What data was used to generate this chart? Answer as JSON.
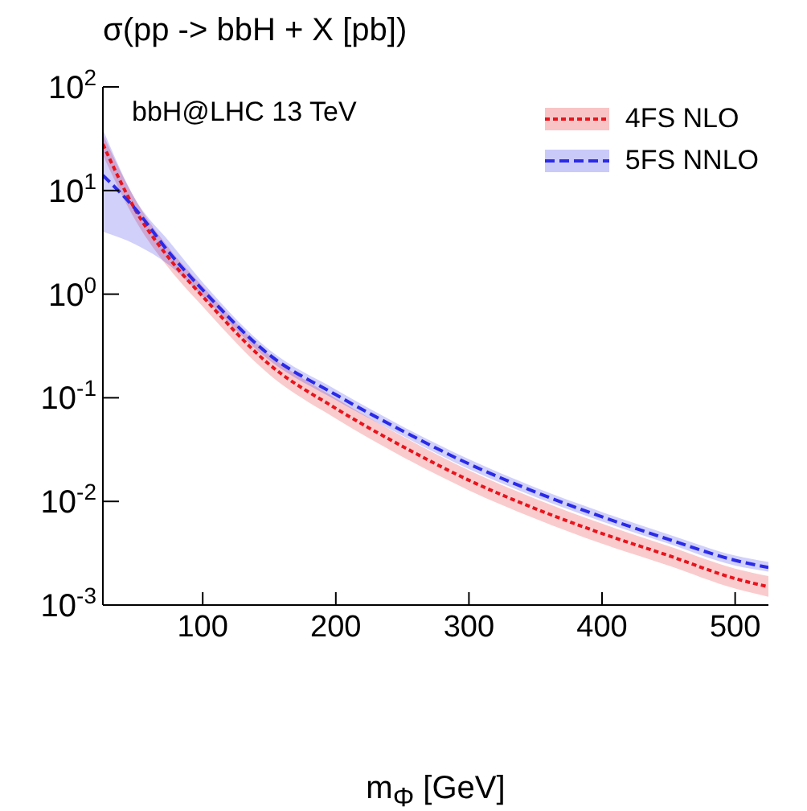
{
  "chart_data": {
    "type": "line",
    "title": "σ(pp -> bbH + X [pb])",
    "xlabel": "m$_{Φ}$ [GeV]",
    "annotations": [
      "bbH@LHC 13 TeV"
    ],
    "x": [
      25,
      50,
      75,
      100,
      150,
      200,
      250,
      300,
      350,
      400,
      450,
      500,
      525
    ],
    "series": [
      {
        "name": "4FS NLO",
        "color": "#e8141c",
        "line_style": "dotted",
        "values": [
          28,
          6.3,
          2.2,
          0.95,
          0.21,
          0.079,
          0.034,
          0.016,
          0.0085,
          0.0049,
          0.003,
          0.0018,
          0.0015
        ],
        "lower": [
          22,
          5.0,
          1.75,
          0.76,
          0.168,
          0.063,
          0.027,
          0.0128,
          0.0068,
          0.0039,
          0.0024,
          0.00144,
          0.0012
        ],
        "upper": [
          35,
          7.9,
          2.75,
          1.19,
          0.26,
          0.099,
          0.0425,
          0.02,
          0.0106,
          0.0061,
          0.0037,
          0.00225,
          0.0019
        ]
      },
      {
        "name": "5FS NNLO",
        "color": "#2a2ae8",
        "line_style": "dashed",
        "values": [
          14,
          6.5,
          2.5,
          1.1,
          0.26,
          0.107,
          0.048,
          0.023,
          0.0123,
          0.0071,
          0.0043,
          0.0027,
          0.0023
        ],
        "lower": [
          4.0,
          3.0,
          1.9,
          0.95,
          0.23,
          0.095,
          0.043,
          0.0205,
          0.011,
          0.0064,
          0.0039,
          0.0024,
          0.0021
        ],
        "upper": [
          39,
          8.0,
          3.2,
          1.3,
          0.29,
          0.12,
          0.053,
          0.0255,
          0.0136,
          0.0079,
          0.0048,
          0.003,
          0.0026
        ]
      }
    ],
    "xlim": [
      25,
      525
    ],
    "xticks": [
      100,
      200,
      300,
      400,
      500
    ],
    "ylim": [
      0.001,
      100
    ],
    "log": true,
    "yticks": [
      {
        "value": 0.001,
        "label": "10$^{-3}$"
      },
      {
        "value": 0.01,
        "label": "10$^{-2}$"
      },
      {
        "value": 0.1,
        "label": "10$^{-1}$"
      },
      {
        "value": 1,
        "label": "10$^{0}$"
      },
      {
        "value": 10,
        "label": "10$^{1}$"
      },
      {
        "value": 100,
        "label": "10$^{2}$"
      }
    ],
    "grid": false,
    "legend": "top right",
    "marker": "none"
  }
}
